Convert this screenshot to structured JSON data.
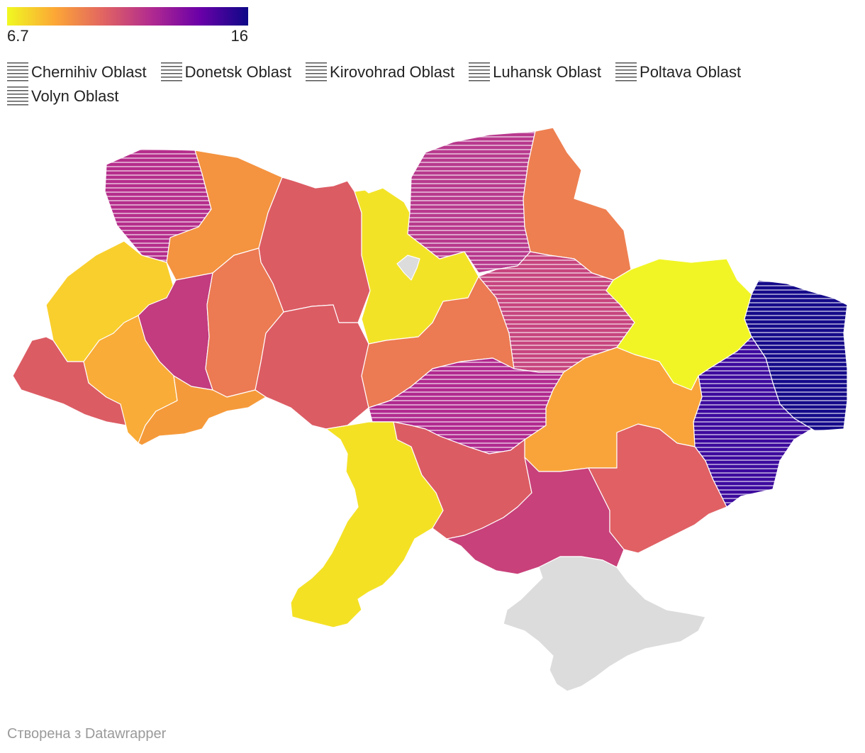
{
  "scale": {
    "min_label": "6.7",
    "max_label": "16",
    "colors": [
      "#f0f921",
      "#fca636",
      "#e16462",
      "#b12a90",
      "#6a00a8",
      "#0d0887"
    ]
  },
  "legend": {
    "items": [
      {
        "label": "Chernihiv Oblast"
      },
      {
        "label": "Donetsk Oblast"
      },
      {
        "label": "Kirovohrad Oblast"
      },
      {
        "label": "Luhansk Oblast"
      },
      {
        "label": "Poltava Oblast"
      },
      {
        "label": "Volyn Oblast"
      }
    ]
  },
  "regions": [
    {
      "id": "volyn",
      "fill": "#b52e8c",
      "hatched": true
    },
    {
      "id": "rivne",
      "fill": "#f49340",
      "hatched": false
    },
    {
      "id": "zhytomyr",
      "fill": "#dc5c64",
      "hatched": false
    },
    {
      "id": "kyiv-oblast",
      "fill": "#f3e327",
      "hatched": false
    },
    {
      "id": "kyiv-city",
      "fill": "#dcdcdc",
      "hatched": false
    },
    {
      "id": "chernihiv",
      "fill": "#b83a8e",
      "hatched": true
    },
    {
      "id": "sumy",
      "fill": "#ee7f51",
      "hatched": false
    },
    {
      "id": "lviv",
      "fill": "#f9cf2d",
      "hatched": false
    },
    {
      "id": "ternopil",
      "fill": "#c23c7f",
      "hatched": false
    },
    {
      "id": "khmelnytskyi",
      "fill": "#ec7a53",
      "hatched": false
    },
    {
      "id": "vinnytsia",
      "fill": "#dc5c64",
      "hatched": false
    },
    {
      "id": "cherkasy",
      "fill": "#ec7a53",
      "hatched": false
    },
    {
      "id": "poltava",
      "fill": "#c7457f",
      "hatched": true
    },
    {
      "id": "kharkiv",
      "fill": "#f1f525",
      "hatched": false
    },
    {
      "id": "luhansk",
      "fill": "#150a8a",
      "hatched": true
    },
    {
      "id": "donetsk",
      "fill": "#3d0a9e",
      "hatched": true
    },
    {
      "id": "zakarpattia",
      "fill": "#dc5c64",
      "hatched": false
    },
    {
      "id": "ivano-frankivsk",
      "fill": "#f9ac38",
      "hatched": false
    },
    {
      "id": "chernivtsi",
      "fill": "#f59a3a",
      "hatched": false
    },
    {
      "id": "kirovohrad",
      "fill": "#b12a90",
      "hatched": true
    },
    {
      "id": "dnipropetrovsk",
      "fill": "#f9a43a",
      "hatched": false
    },
    {
      "id": "odesa",
      "fill": "#f4e124",
      "hatched": false
    },
    {
      "id": "mykolaiv",
      "fill": "#dc5c64",
      "hatched": false
    },
    {
      "id": "kherson",
      "fill": "#c8417a",
      "hatched": false
    },
    {
      "id": "zaporizhzhia",
      "fill": "#e06064",
      "hatched": false
    },
    {
      "id": "crimea",
      "fill": "#dcdcdc",
      "hatched": false
    }
  ],
  "credit": "Створена з Datawrapper"
}
